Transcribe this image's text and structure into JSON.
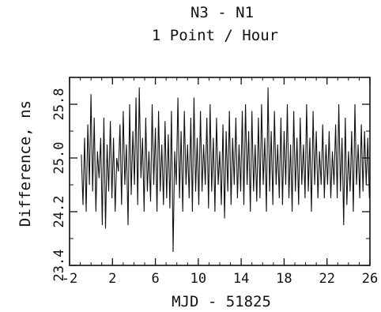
{
  "chart_data": {
    "type": "line",
    "title": "N3 - N1",
    "subtitle": "1 Point / Hour",
    "xlabel": "MJD - 51825",
    "ylabel": "Difference, ns",
    "xlim": [
      -2,
      26
    ],
    "ylim": [
      23.4,
      26.2
    ],
    "xticks": [
      -2,
      2,
      6,
      10,
      14,
      18,
      22,
      26
    ],
    "yticks": [
      23.4,
      24.2,
      25.0,
      25.8
    ],
    "x_tick_labels": [
      "-2",
      "2",
      "6",
      "10",
      "14",
      "18",
      "22",
      "26"
    ],
    "y_tick_labels": [
      "23.4",
      "24.2",
      "25.0",
      "25.8"
    ],
    "y_minor_tick_step": 0.4,
    "x_minor_tick_step": 1,
    "grid": false,
    "series": [
      {
        "description_x_range": [
          -0.9,
          26
        ],
        "values_summary": "hourly samples oscillating mostly between ~24.1 and ~25.9 ns around a mean of ~25.0 ns",
        "points": [
          [
            -0.9,
            25.05
          ],
          [
            -0.75,
            24.3
          ],
          [
            -0.6,
            25.3
          ],
          [
            -0.45,
            24.2
          ],
          [
            -0.3,
            25.5
          ],
          [
            -0.15,
            24.6
          ],
          [
            0.0,
            25.95
          ],
          [
            0.15,
            24.5
          ],
          [
            0.3,
            25.6
          ],
          [
            0.45,
            24.2
          ],
          [
            0.6,
            25.1
          ],
          [
            0.75,
            24.7
          ],
          [
            0.9,
            25.3
          ],
          [
            1.05,
            24.0
          ],
          [
            1.2,
            25.6
          ],
          [
            1.35,
            23.95
          ],
          [
            1.5,
            25.2
          ],
          [
            1.65,
            24.5
          ],
          [
            1.8,
            25.55
          ],
          [
            1.95,
            24.4
          ],
          [
            2.1,
            25.3
          ],
          [
            2.25,
            24.2
          ],
          [
            2.4,
            25.0
          ],
          [
            2.55,
            24.8
          ],
          [
            2.7,
            25.5
          ],
          [
            2.85,
            24.3
          ],
          [
            3.0,
            25.7
          ],
          [
            3.15,
            24.6
          ],
          [
            3.3,
            25.2
          ],
          [
            3.45,
            24.0
          ],
          [
            3.6,
            25.8
          ],
          [
            3.75,
            24.45
          ],
          [
            3.9,
            25.4
          ],
          [
            4.05,
            24.6
          ],
          [
            4.2,
            25.9
          ],
          [
            4.35,
            24.3
          ],
          [
            4.5,
            26.05
          ],
          [
            4.65,
            24.7
          ],
          [
            4.8,
            25.3
          ],
          [
            4.95,
            24.2
          ],
          [
            5.1,
            25.6
          ],
          [
            5.25,
            24.5
          ],
          [
            5.4,
            25.1
          ],
          [
            5.55,
            24.35
          ],
          [
            5.7,
            25.8
          ],
          [
            5.85,
            24.6
          ],
          [
            6.0,
            25.45
          ],
          [
            6.15,
            24.2
          ],
          [
            6.3,
            25.7
          ],
          [
            6.45,
            24.5
          ],
          [
            6.6,
            25.2
          ],
          [
            6.75,
            24.3
          ],
          [
            6.9,
            25.55
          ],
          [
            7.05,
            24.4
          ],
          [
            7.2,
            25.35
          ],
          [
            7.35,
            24.25
          ],
          [
            7.5,
            25.7
          ],
          [
            7.65,
            23.6
          ],
          [
            7.8,
            25.1
          ],
          [
            7.95,
            24.6
          ],
          [
            8.1,
            25.9
          ],
          [
            8.25,
            24.4
          ],
          [
            8.4,
            25.4
          ],
          [
            8.55,
            24.2
          ],
          [
            8.7,
            25.7
          ],
          [
            8.85,
            24.6
          ],
          [
            9.0,
            25.2
          ],
          [
            9.15,
            24.4
          ],
          [
            9.3,
            25.6
          ],
          [
            9.45,
            24.2
          ],
          [
            9.6,
            25.9
          ],
          [
            9.75,
            24.5
          ],
          [
            9.9,
            25.3
          ],
          [
            10.05,
            24.3
          ],
          [
            10.2,
            25.7
          ],
          [
            10.35,
            24.5
          ],
          [
            10.5,
            25.2
          ],
          [
            10.65,
            24.6
          ],
          [
            10.8,
            25.6
          ],
          [
            10.95,
            24.25
          ],
          [
            11.1,
            25.8
          ],
          [
            11.25,
            24.5
          ],
          [
            11.4,
            25.3
          ],
          [
            11.55,
            24.2
          ],
          [
            11.7,
            25.6
          ],
          [
            11.85,
            24.6
          ],
          [
            12.0,
            25.1
          ],
          [
            12.15,
            24.3
          ],
          [
            12.3,
            25.5
          ],
          [
            12.45,
            24.1
          ],
          [
            12.6,
            25.4
          ],
          [
            12.75,
            24.5
          ],
          [
            12.9,
            25.7
          ],
          [
            13.05,
            24.3
          ],
          [
            13.2,
            25.3
          ],
          [
            13.35,
            24.6
          ],
          [
            13.5,
            25.6
          ],
          [
            13.65,
            24.4
          ],
          [
            13.8,
            25.2
          ],
          [
            13.95,
            24.5
          ],
          [
            14.1,
            25.7
          ],
          [
            14.25,
            24.3
          ],
          [
            14.4,
            25.8
          ],
          [
            14.55,
            24.6
          ],
          [
            14.7,
            25.4
          ],
          [
            14.85,
            24.2
          ],
          [
            15.0,
            25.7
          ],
          [
            15.15,
            24.5
          ],
          [
            15.3,
            25.2
          ],
          [
            15.45,
            24.35
          ],
          [
            15.6,
            25.6
          ],
          [
            15.75,
            24.4
          ],
          [
            15.9,
            25.8
          ],
          [
            16.05,
            24.6
          ],
          [
            16.2,
            25.3
          ],
          [
            16.35,
            24.2
          ],
          [
            16.5,
            26.05
          ],
          [
            16.65,
            24.5
          ],
          [
            16.8,
            25.4
          ],
          [
            16.95,
            24.3
          ],
          [
            17.1,
            25.7
          ],
          [
            17.25,
            24.6
          ],
          [
            17.4,
            25.2
          ],
          [
            17.55,
            24.4
          ],
          [
            17.7,
            25.6
          ],
          [
            17.85,
            24.3
          ],
          [
            18.0,
            25.4
          ],
          [
            18.15,
            24.6
          ],
          [
            18.3,
            25.8
          ],
          [
            18.45,
            24.4
          ],
          [
            18.6,
            25.2
          ],
          [
            18.75,
            24.2
          ],
          [
            18.9,
            25.7
          ],
          [
            19.05,
            24.5
          ],
          [
            19.2,
            25.3
          ],
          [
            19.35,
            24.3
          ],
          [
            19.5,
            25.6
          ],
          [
            19.65,
            24.6
          ],
          [
            19.8,
            25.2
          ],
          [
            19.95,
            24.4
          ],
          [
            20.1,
            25.8
          ],
          [
            20.25,
            24.5
          ],
          [
            20.4,
            25.3
          ],
          [
            20.55,
            24.2
          ],
          [
            20.7,
            25.7
          ],
          [
            20.85,
            24.6
          ],
          [
            21.0,
            25.4
          ],
          [
            21.15,
            24.4
          ],
          [
            21.3,
            25.1
          ],
          [
            21.45,
            24.6
          ],
          [
            21.6,
            25.5
          ],
          [
            21.75,
            24.4
          ],
          [
            21.9,
            25.2
          ],
          [
            22.05,
            24.6
          ],
          [
            22.2,
            25.4
          ],
          [
            22.35,
            24.4
          ],
          [
            22.5,
            25.1
          ],
          [
            22.65,
            24.6
          ],
          [
            22.8,
            25.5
          ],
          [
            22.95,
            24.4
          ],
          [
            23.1,
            25.8
          ],
          [
            23.25,
            24.5
          ],
          [
            23.4,
            25.3
          ],
          [
            23.55,
            24.0
          ],
          [
            23.7,
            25.6
          ],
          [
            23.85,
            24.3
          ],
          [
            24.0,
            25.1
          ],
          [
            24.15,
            24.5
          ],
          [
            24.3,
            25.4
          ],
          [
            24.45,
            24.2
          ],
          [
            24.6,
            25.8
          ],
          [
            24.75,
            24.6
          ],
          [
            24.9,
            25.2
          ],
          [
            25.05,
            24.4
          ],
          [
            25.2,
            25.5
          ],
          [
            25.35,
            24.5
          ],
          [
            25.5,
            25.4
          ],
          [
            25.65,
            24.6
          ],
          [
            25.8,
            25.3
          ],
          [
            25.95,
            24.4
          ]
        ]
      }
    ]
  }
}
